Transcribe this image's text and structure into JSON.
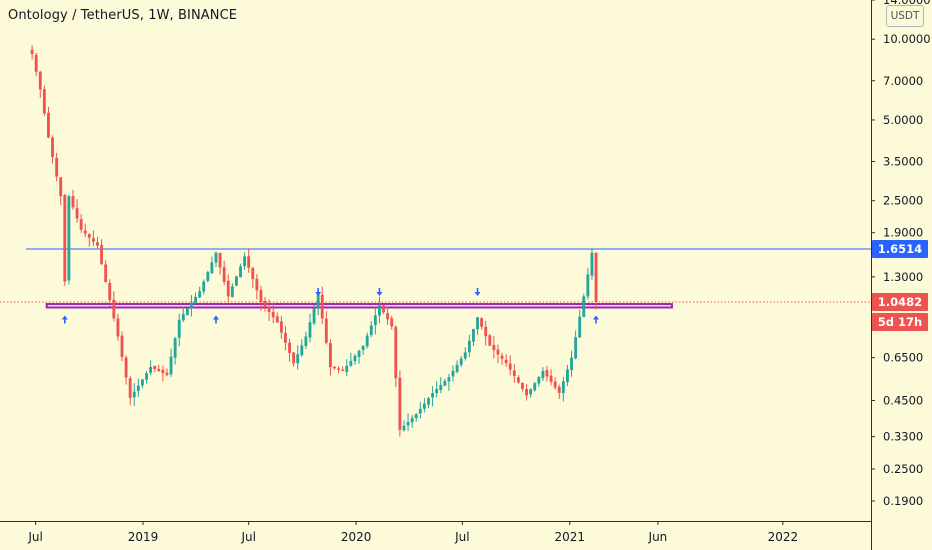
{
  "header": {
    "title": "Ontology / TetherUS, 1W, BINANCE",
    "currency": "USDT"
  },
  "price_labels": {
    "resistance": "1.6514",
    "current": "1.0482",
    "countdown": "5d 17h"
  },
  "colors": {
    "background": "#fcfad9",
    "up": "#26a69a",
    "down": "#ef5350",
    "resistance_line": "#2962ff",
    "support_band": "#9c27b0",
    "last_price": "#ef5350",
    "arrow": "#2962ff"
  },
  "chart_data": {
    "type": "candlestick",
    "title": "Ontology / TetherUS, 1W, BINANCE",
    "y_scale": "log",
    "ylim": [
      0.16,
      14.0
    ],
    "xlim": [
      "2018-05-01",
      "2022-06-01"
    ],
    "y_ticks": [
      "14.0000",
      "10.0000",
      "7.0000",
      "5.0000",
      "3.5000",
      "2.5000",
      "1.9000",
      "1.3000",
      "0.6500",
      "0.4500",
      "0.3300",
      "0.2500",
      "0.1900"
    ],
    "x_ticks": [
      {
        "label": "Jul",
        "date": "2018-07-01"
      },
      {
        "label": "2019",
        "date": "2019-01-01"
      },
      {
        "label": "Jul",
        "date": "2019-07-01"
      },
      {
        "label": "2020",
        "date": "2020-01-01"
      },
      {
        "label": "Jul",
        "date": "2020-07-01"
      },
      {
        "label": "2021",
        "date": "2021-01-01"
      },
      {
        "label": "Jun",
        "date": "2021-06-01"
      },
      {
        "label": "2022",
        "date": "2022-01-01"
      }
    ],
    "lines": {
      "resistance": 1.6514,
      "last_price": 1.0482,
      "support_band": [
        1.0,
        1.03
      ]
    },
    "path": [
      [
        "2018-06-25",
        8.8
      ],
      [
        "2018-07-09",
        6.5
      ],
      [
        "2018-07-23",
        4.3
      ],
      [
        "2018-08-13",
        2.6
      ],
      [
        "2018-08-20",
        1.25
      ],
      [
        "2018-08-27",
        2.6
      ],
      [
        "2018-09-17",
        1.95
      ],
      [
        "2018-10-15",
        1.7
      ],
      [
        "2018-11-19",
        0.78
      ],
      [
        "2018-12-10",
        0.46
      ],
      [
        "2019-01-14",
        0.6
      ],
      [
        "2019-02-11",
        0.56
      ],
      [
        "2019-03-04",
        0.9
      ],
      [
        "2019-04-08",
        1.15
      ],
      [
        "2019-05-06",
        1.6
      ],
      [
        "2019-05-27",
        1.1
      ],
      [
        "2019-06-24",
        1.55
      ],
      [
        "2019-07-22",
        1.05
      ],
      [
        "2019-08-19",
        0.88
      ],
      [
        "2019-09-16",
        0.62
      ],
      [
        "2019-10-07",
        0.78
      ],
      [
        "2019-10-28",
        1.12
      ],
      [
        "2019-11-18",
        0.6
      ],
      [
        "2019-12-09",
        0.58
      ],
      [
        "2020-01-13",
        0.72
      ],
      [
        "2020-02-10",
        1.02
      ],
      [
        "2020-03-02",
        0.85
      ],
      [
        "2020-03-16",
        0.35
      ],
      [
        "2020-04-13",
        0.4
      ],
      [
        "2020-05-11",
        0.48
      ],
      [
        "2020-06-08",
        0.55
      ],
      [
        "2020-07-06",
        0.68
      ],
      [
        "2020-07-27",
        0.92
      ],
      [
        "2020-08-17",
        0.72
      ],
      [
        "2020-09-14",
        0.62
      ],
      [
        "2020-10-19",
        0.47
      ],
      [
        "2020-11-16",
        0.58
      ],
      [
        "2020-12-14",
        0.48
      ],
      [
        "2021-01-04",
        0.65
      ],
      [
        "2021-01-25",
        1.1
      ],
      [
        "2021-02-08",
        1.6
      ],
      [
        "2021-02-15",
        1.0482
      ]
    ],
    "arrows": [
      {
        "date": "2018-08-20",
        "dir": "up"
      },
      {
        "date": "2019-05-06",
        "dir": "up"
      },
      {
        "date": "2019-10-28",
        "dir": "down"
      },
      {
        "date": "2020-02-10",
        "dir": "down"
      },
      {
        "date": "2020-07-27",
        "dir": "down"
      },
      {
        "date": "2021-02-15",
        "dir": "up"
      }
    ]
  }
}
